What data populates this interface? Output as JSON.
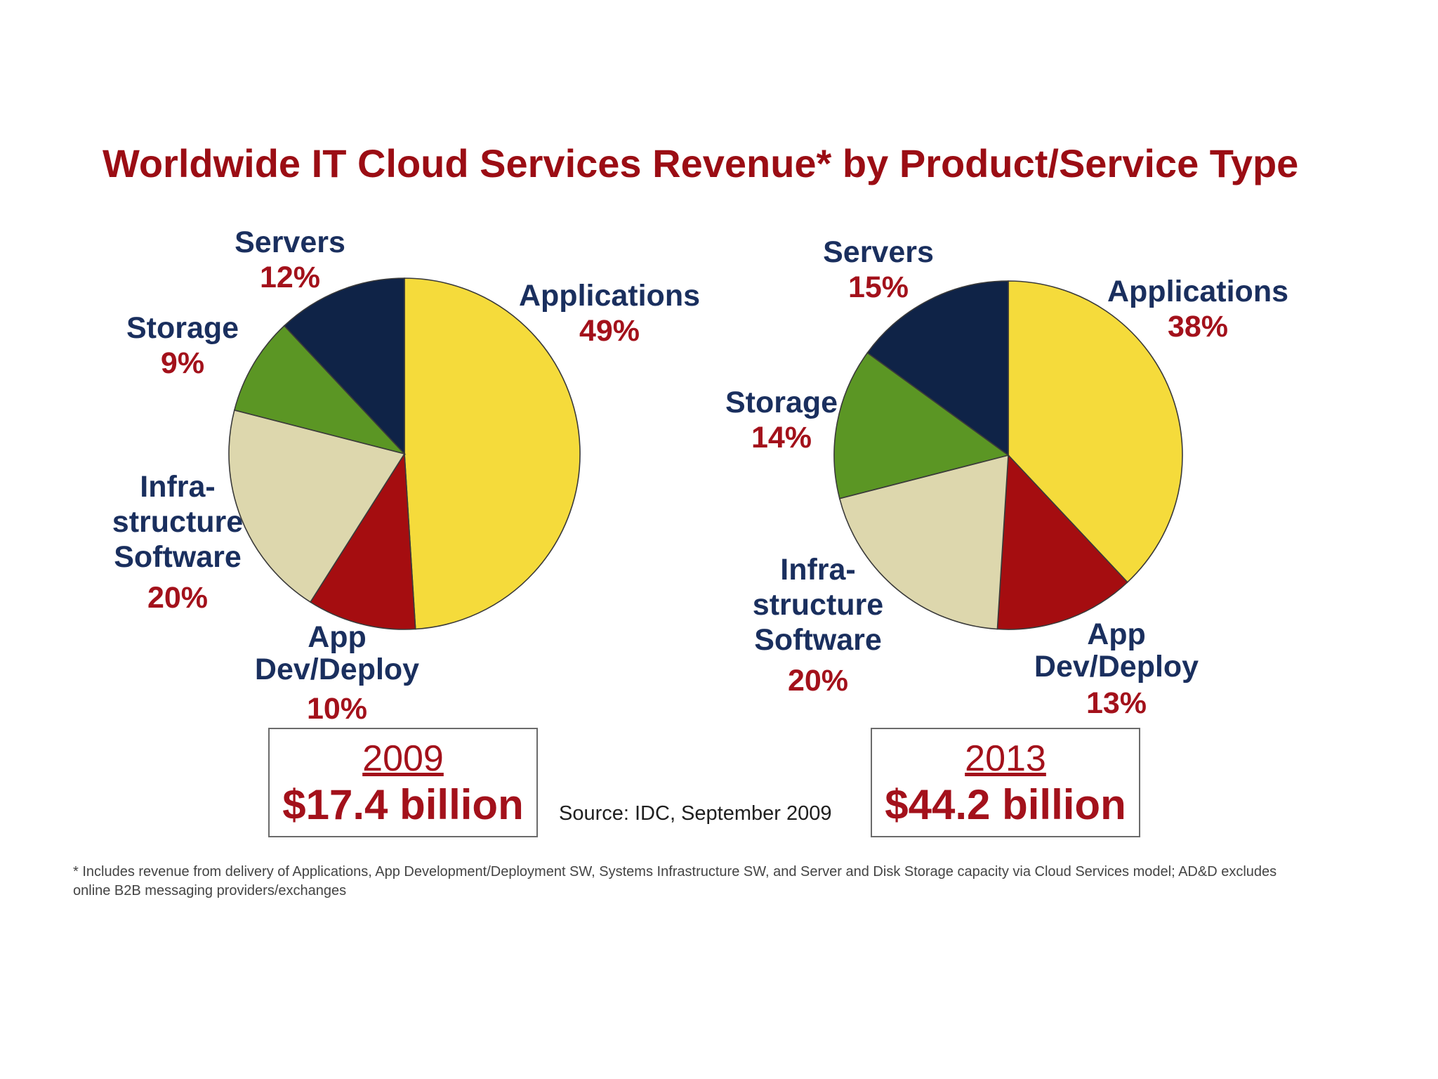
{
  "chart_data": [
    {
      "type": "pie",
      "title": "Worldwide IT Cloud Services Revenue* by Product/Service Type",
      "year": "2009",
      "total": "$17.4 billion",
      "slices": [
        {
          "name": "Applications",
          "value": 49,
          "label": "49%",
          "color": "#f5db3b"
        },
        {
          "name": "App Dev/Deploy",
          "value": 10,
          "label": "10%",
          "color": "#a50d10"
        },
        {
          "name": "Infrastructure Software",
          "value": 20,
          "label": "20%",
          "color": "#ddd7ad"
        },
        {
          "name": "Storage",
          "value": 9,
          "label": "9%",
          "color": "#5b9624"
        },
        {
          "name": "Servers",
          "value": 12,
          "label": "12%",
          "color": "#0f2347"
        }
      ]
    },
    {
      "type": "pie",
      "title": "Worldwide IT Cloud Services Revenue* by Product/Service Type",
      "year": "2013",
      "total": "$44.2 billion",
      "slices": [
        {
          "name": "Applications",
          "value": 38,
          "label": "38%",
          "color": "#f5db3b"
        },
        {
          "name": "App Dev/Deploy",
          "value": 13,
          "label": "13%",
          "color": "#a50d10"
        },
        {
          "name": "Infrastructure Software",
          "value": 20,
          "label": "20%",
          "color": "#ddd7ad"
        },
        {
          "name": "Storage",
          "value": 14,
          "label": "14%",
          "color": "#5b9624"
        },
        {
          "name": "Servers",
          "value": 15,
          "label": "15%",
          "color": "#0f2347"
        }
      ]
    }
  ],
  "labels": {
    "servers": "Servers",
    "storage": "Storage",
    "applications": "Applications",
    "infra_line1": "Infra-",
    "infra_line2": "structure",
    "infra_line3": "Software",
    "appdev_line1": "App",
    "appdev_line2": "Dev/Deploy"
  },
  "title": "Worldwide IT Cloud Services Revenue* by Product/Service Type",
  "source": "Source: IDC, September 2009",
  "footnote": "* Includes revenue from delivery of Applications, App Development/Deployment SW, Systems Infrastructure SW, and Server and Disk Storage capacity via Cloud Services model; AD&D excludes online B2B messaging providers/exchanges"
}
